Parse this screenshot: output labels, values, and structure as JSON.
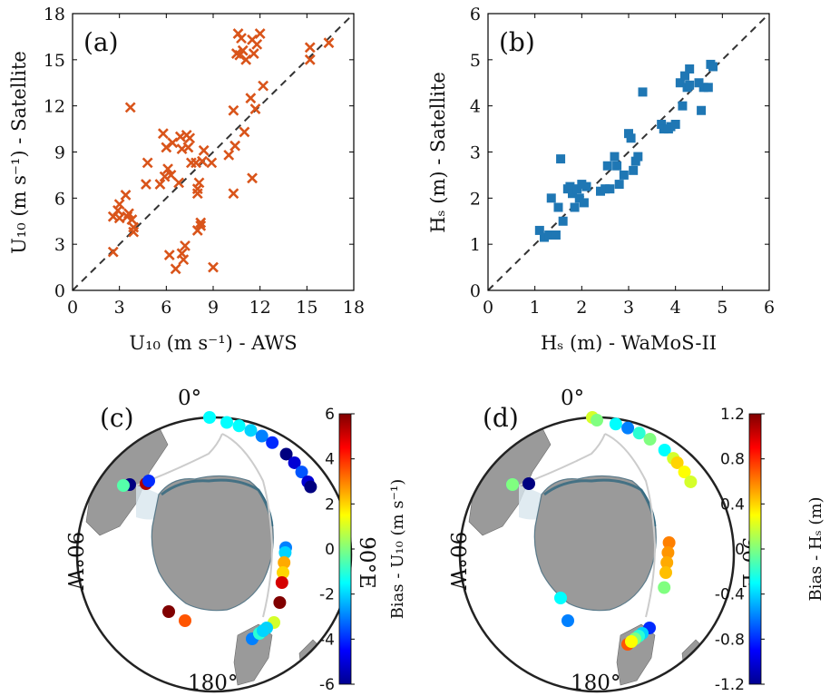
{
  "chart_data": [
    {
      "panel": "a",
      "type": "scatter",
      "label": "(a)",
      "xlabel": "U₁₀ (m s⁻¹) - AWS",
      "ylabel": "U₁₀ (m s⁻¹) - Satellite",
      "xlim": [
        0,
        18
      ],
      "ylim": [
        0,
        18
      ],
      "xticks": [
        "0",
        "3",
        "6",
        "9",
        "12",
        "15",
        "18"
      ],
      "yticks": [
        "0",
        "3",
        "6",
        "9",
        "12",
        "15",
        "18"
      ],
      "marker": "x",
      "color": "#d9541a",
      "reference_line": "1:1 dashed",
      "points": [
        [
          2.6,
          2.5
        ],
        [
          2.6,
          4.8
        ],
        [
          2.9,
          5.2
        ],
        [
          3.0,
          4.7
        ],
        [
          3.0,
          5.6
        ],
        [
          3.4,
          6.2
        ],
        [
          3.5,
          4.8
        ],
        [
          3.6,
          5.0
        ],
        [
          3.8,
          4.6
        ],
        [
          3.9,
          4.1
        ],
        [
          3.9,
          3.8
        ],
        [
          3.7,
          11.9
        ],
        [
          4.7,
          6.9
        ],
        [
          4.8,
          8.3
        ],
        [
          5.6,
          6.9
        ],
        [
          5.8,
          10.2
        ],
        [
          5.9,
          7.4
        ],
        [
          6.0,
          9.3
        ],
        [
          6.1,
          7.9
        ],
        [
          6.2,
          2.3
        ],
        [
          6.3,
          7.5
        ],
        [
          6.4,
          9.6
        ],
        [
          6.6,
          1.4
        ],
        [
          6.8,
          7.0
        ],
        [
          6.9,
          10.0
        ],
        [
          7.0,
          9.2
        ],
        [
          7.0,
          2.4
        ],
        [
          7.1,
          2.0
        ],
        [
          7.2,
          2.9
        ],
        [
          7.3,
          10.1
        ],
        [
          7.4,
          9.3
        ],
        [
          7.5,
          9.9
        ],
        [
          7.6,
          8.3
        ],
        [
          7.9,
          8.3
        ],
        [
          8.0,
          6.3
        ],
        [
          8.0,
          6.6
        ],
        [
          8.1,
          7.0
        ],
        [
          8.0,
          3.9
        ],
        [
          8.2,
          4.2
        ],
        [
          8.2,
          4.4
        ],
        [
          8.3,
          8.4
        ],
        [
          8.4,
          9.1
        ],
        [
          8.9,
          8.3
        ],
        [
          9.0,
          1.5
        ],
        [
          10.0,
          8.8
        ],
        [
          10.4,
          9.4
        ],
        [
          10.3,
          6.3
        ],
        [
          10.3,
          11.7
        ],
        [
          10.5,
          15.4
        ],
        [
          10.6,
          16.7
        ],
        [
          10.7,
          15.3
        ],
        [
          10.8,
          16.4
        ],
        [
          10.9,
          15.6
        ],
        [
          11.1,
          15.0
        ],
        [
          11.0,
          10.3
        ],
        [
          11.4,
          12.5
        ],
        [
          11.5,
          16.3
        ],
        [
          11.5,
          7.3
        ],
        [
          11.6,
          15.4
        ],
        [
          11.7,
          11.8
        ],
        [
          11.8,
          16.0
        ],
        [
          12.0,
          16.7
        ],
        [
          12.2,
          13.3
        ],
        [
          15.2,
          15.8
        ],
        [
          15.2,
          15.0
        ],
        [
          16.4,
          16.1
        ]
      ]
    },
    {
      "panel": "b",
      "type": "scatter",
      "label": "(b)",
      "xlabel": "Hₛ (m) - WaMoS-II",
      "ylabel": "Hₛ (m) - Satellite",
      "xlim": [
        0,
        6
      ],
      "ylim": [
        0,
        6
      ],
      "xticks": [
        "0",
        "1",
        "2",
        "3",
        "4",
        "5",
        "6"
      ],
      "yticks": [
        "0",
        "1",
        "2",
        "3",
        "4",
        "5",
        "6"
      ],
      "marker": "square",
      "color": "#1f77b4",
      "reference_line": "1:1 dashed",
      "points": [
        [
          1.1,
          1.3
        ],
        [
          1.2,
          1.15
        ],
        [
          1.3,
          1.2
        ],
        [
          1.35,
          2.0
        ],
        [
          1.45,
          1.2
        ],
        [
          1.5,
          1.8
        ],
        [
          1.55,
          2.85
        ],
        [
          1.6,
          1.5
        ],
        [
          1.7,
          2.2
        ],
        [
          1.75,
          2.25
        ],
        [
          1.8,
          2.1
        ],
        [
          1.85,
          1.8
        ],
        [
          1.9,
          2.2
        ],
        [
          1.95,
          2.0
        ],
        [
          2.0,
          2.3
        ],
        [
          2.05,
          1.9
        ],
        [
          2.1,
          2.25
        ],
        [
          2.4,
          2.15
        ],
        [
          2.5,
          2.2
        ],
        [
          2.55,
          2.7
        ],
        [
          2.6,
          2.2
        ],
        [
          2.7,
          2.9
        ],
        [
          2.75,
          2.7
        ],
        [
          2.8,
          2.3
        ],
        [
          2.9,
          2.5
        ],
        [
          3.0,
          3.4
        ],
        [
          3.05,
          3.3
        ],
        [
          3.1,
          2.6
        ],
        [
          3.15,
          2.8
        ],
        [
          3.2,
          2.9
        ],
        [
          3.3,
          4.3
        ],
        [
          3.7,
          3.6
        ],
        [
          3.75,
          3.5
        ],
        [
          3.85,
          3.5
        ],
        [
          3.9,
          3.55
        ],
        [
          4.0,
          3.6
        ],
        [
          4.1,
          4.5
        ],
        [
          4.15,
          4.0
        ],
        [
          4.2,
          4.65
        ],
        [
          4.25,
          4.4
        ],
        [
          4.3,
          4.8
        ],
        [
          4.5,
          4.5
        ],
        [
          4.55,
          3.9
        ],
        [
          4.6,
          4.4
        ],
        [
          4.7,
          4.4
        ],
        [
          4.75,
          4.9
        ],
        [
          4.8,
          4.85
        ],
        [
          4.3,
          4.45
        ]
      ]
    },
    {
      "panel": "c",
      "type": "map",
      "label": "(c)",
      "projection": "south polar stereographic",
      "lon_labels": [
        "0°",
        "90°E",
        "180°",
        "90°W"
      ],
      "colorbar": {
        "label": "Bias - U₁₀ (m s⁻¹)",
        "min": -6,
        "max": 6,
        "ticks": [
          "6",
          "4",
          "2",
          "0",
          "-2",
          "-4",
          "-6"
        ]
      },
      "points_bias": [
        [
          -1.5,
          -1.5
        ],
        [
          1.0,
          -1.5
        ],
        [
          2.0,
          -1.5
        ],
        [
          3.0,
          -2.0
        ],
        [
          4.0,
          -3.0
        ],
        [
          5.0,
          -4.0
        ],
        [
          6.5,
          -6.0
        ],
        [
          7.5,
          -5.0
        ],
        [
          8.5,
          -3.5
        ],
        [
          9.5,
          -5.0
        ],
        [
          10.0,
          -6.0
        ],
        [
          13.5,
          -3.0
        ],
        [
          14.0,
          -2.0
        ],
        [
          15.0,
          2.5
        ],
        [
          16.0,
          2.0
        ],
        [
          17.0,
          5.0
        ],
        [
          19.0,
          6.0
        ],
        [
          20.5,
          1.0
        ],
        [
          21.5,
          -2.0
        ],
        [
          22.5,
          -2.5
        ],
        [
          23.5,
          -3.0
        ],
        [
          22.0,
          3.0
        ],
        [
          22.5,
          -1.0
        ],
        [
          22.0,
          -2.0
        ],
        [
          -10.5,
          5.5
        ],
        [
          -7.0,
          -4.0
        ],
        [
          -11.5,
          -6.0
        ],
        [
          -12.5,
          -0.5
        ],
        [
          -14.0,
          6.0
        ],
        [
          -14.5,
          3.5
        ]
      ]
    },
    {
      "panel": "d",
      "type": "map",
      "label": "(d)",
      "projection": "south polar stereographic",
      "lon_labels": [
        "0°",
        "90°E",
        "180°",
        "90°W"
      ],
      "colorbar": {
        "label": "Bias - Hₛ (m)",
        "min": -1.2,
        "max": 1.2,
        "ticks": [
          "1.2",
          "0.8",
          "0.4",
          "0",
          "-0.4",
          "-0.8",
          "-1.2"
        ]
      },
      "points_bias": [
        [
          -1.0,
          0.2
        ],
        [
          0.0,
          0.0
        ],
        [
          1.5,
          -0.3
        ],
        [
          2.5,
          -0.6
        ],
        [
          3.5,
          -0.2
        ],
        [
          4.5,
          0.0
        ],
        [
          6.0,
          -0.3
        ],
        [
          7.0,
          0.2
        ],
        [
          7.5,
          0.4
        ],
        [
          8.5,
          0.3
        ],
        [
          9.5,
          0.2
        ],
        [
          13.0,
          0.6
        ],
        [
          14.0,
          0.55
        ],
        [
          15.0,
          0.5
        ],
        [
          16.0,
          0.45
        ],
        [
          17.5,
          0.0
        ],
        [
          21.5,
          -0.8
        ],
        [
          22.5,
          -0.4
        ],
        [
          23.0,
          -0.2
        ],
        [
          23.5,
          0.0
        ],
        [
          24.0,
          0.1
        ],
        [
          24.5,
          0.7
        ],
        [
          24.0,
          0.3
        ],
        [
          -10.5,
          -1.2
        ],
        [
          -11.5,
          -0.4
        ],
        [
          -12.0,
          0.0
        ],
        [
          -14.5,
          -0.6
        ],
        [
          -15.0,
          -0.3
        ]
      ]
    }
  ]
}
